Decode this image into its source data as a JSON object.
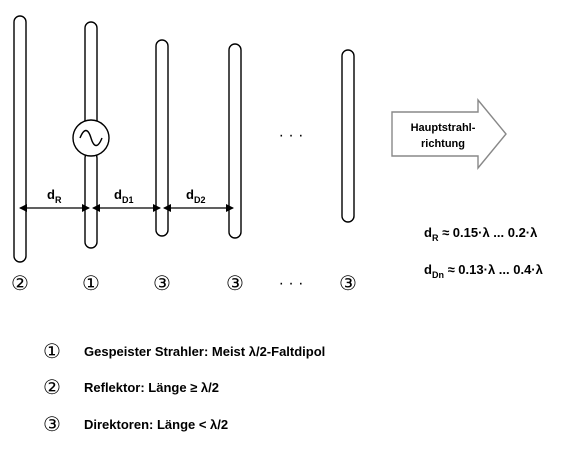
{
  "arrow": {
    "line1": "Hauptstrahl-",
    "line2": "richtung"
  },
  "spacings": {
    "dR": {
      "base": "d",
      "sub": "R"
    },
    "dD1": {
      "base": "d",
      "sub": "D1"
    },
    "dD2": {
      "base": "d",
      "sub": "D2"
    }
  },
  "ellipsis": "· · ·",
  "element_markers": [
    "②",
    "①",
    "③",
    "③",
    "· · ·",
    "③"
  ],
  "formulas": {
    "f1": {
      "base": "d",
      "sub": "R",
      "rest": " ≈ 0.15·λ ... 0.2·λ"
    },
    "f2": {
      "base": "d",
      "sub": "Dn",
      "rest": " ≈ 0.13·λ ... 0.4·λ"
    }
  },
  "legend": [
    {
      "marker": "①",
      "text": "Gespeister Strahler: Meist λ/2-Faltdipol"
    },
    {
      "marker": "②",
      "text": "Reflektor: Länge ≥ λ/2"
    },
    {
      "marker": "③",
      "text": "Direktoren: Länge < λ/2"
    }
  ]
}
